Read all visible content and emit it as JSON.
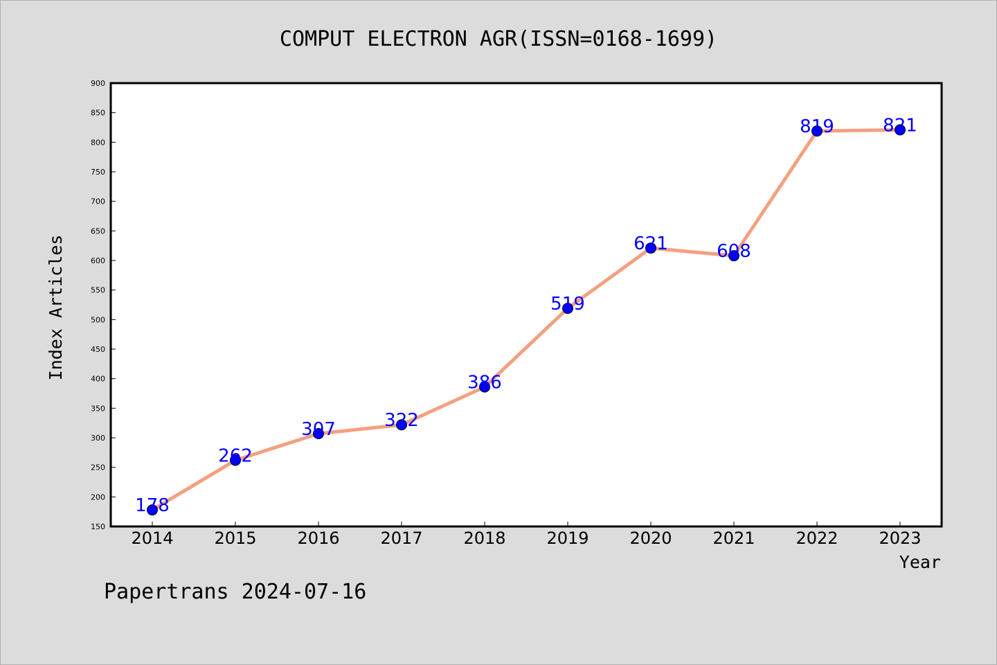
{
  "footer": "Papertrans 2024-07-16",
  "chart_data": {
    "type": "line",
    "title": "COMPUT ELECTRON AGR(ISSN=0168-1699)",
    "xlabel": "Year",
    "ylabel": "Index Articles",
    "categories": [
      "2014",
      "2015",
      "2016",
      "2017",
      "2018",
      "2019",
      "2020",
      "2021",
      "2022",
      "2023"
    ],
    "values": [
      178,
      262,
      307,
      322,
      386,
      519,
      621,
      608,
      819,
      821
    ],
    "data_labels": [
      "178",
      "262",
      "307",
      "322",
      "386",
      "519",
      "621",
      "608",
      "819",
      "821"
    ],
    "ylim": [
      150,
      900
    ],
    "yticks": [
      "150",
      "200",
      "250",
      "300",
      "350",
      "400",
      "450",
      "500",
      "550",
      "600",
      "650",
      "700",
      "750",
      "800",
      "850",
      "900"
    ],
    "grid": false,
    "line_color": "#f4a081",
    "marker_color": "#0000ff",
    "label_color": "#0000ff",
    "plot_background": "#ffffff",
    "page_background": "#dcdcdc"
  }
}
